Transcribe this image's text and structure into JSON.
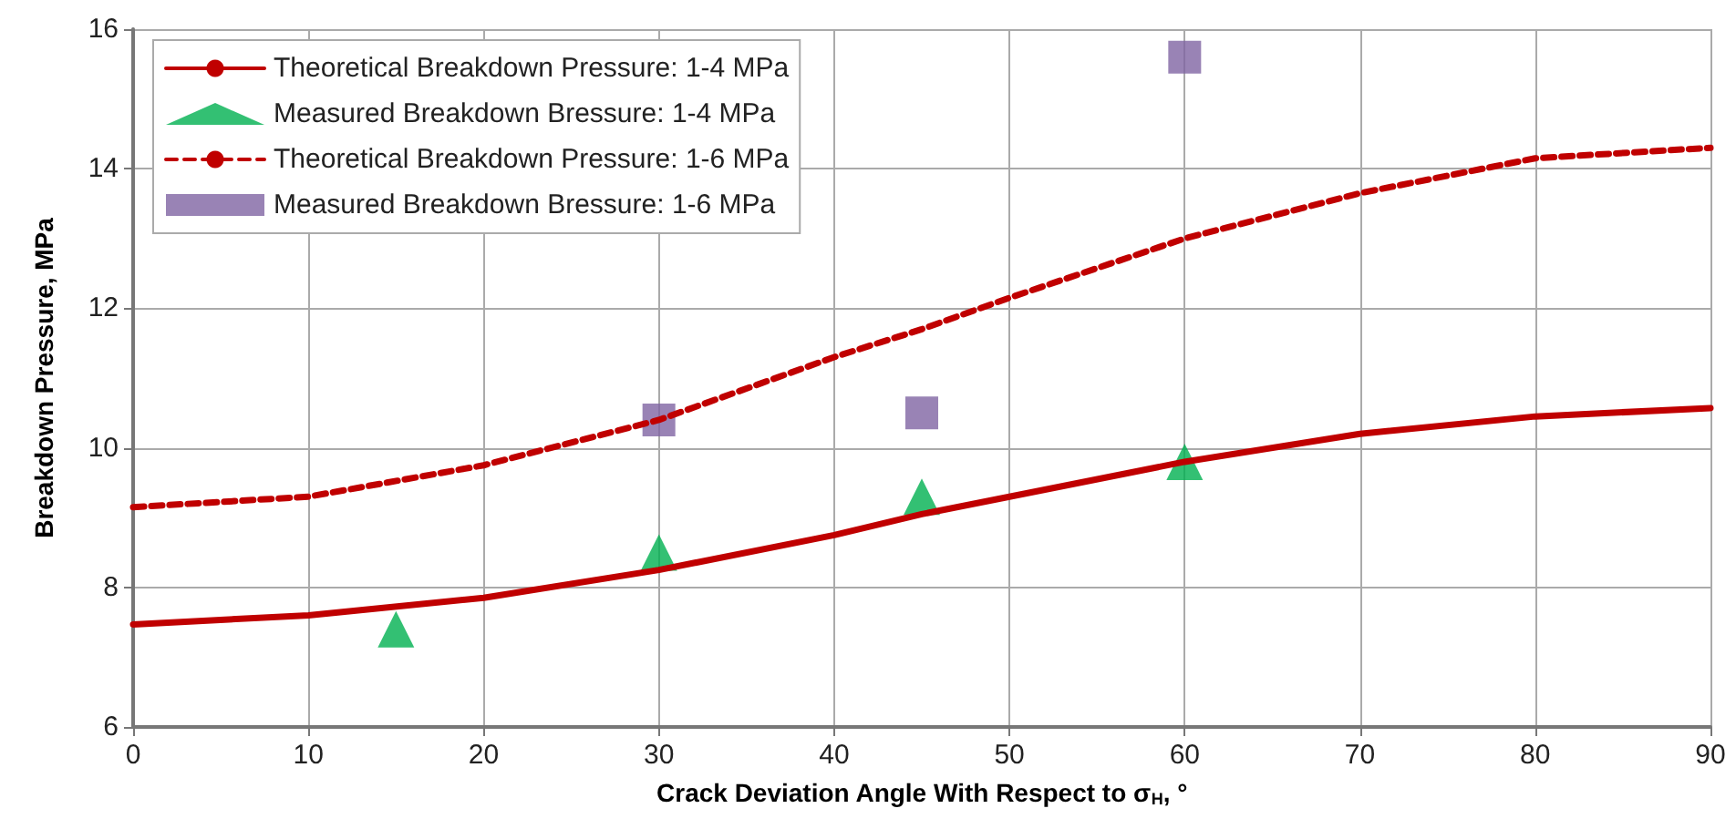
{
  "chart_data": {
    "type": "line",
    "xlabel": "Crack Deviation Angle With Respect to σ$_{H}$, °",
    "ylabel": "Breakdown Pressure, MPa",
    "xlim": [
      0,
      90
    ],
    "xticks": [
      0,
      10,
      20,
      30,
      40,
      50,
      60,
      70,
      80,
      90
    ],
    "ylim": [
      6,
      16
    ],
    "yticks": [
      6,
      8,
      10,
      12,
      14,
      16
    ],
    "grid": true,
    "legend": "top left",
    "series": [
      {
        "name": "Theoretical Breakdown Pressure: 1-4 MPa",
        "color": "#c00000",
        "line_style": "solid",
        "marker": "none",
        "x": [
          0,
          10,
          20,
          30,
          40,
          45,
          50,
          60,
          70,
          80,
          90
        ],
        "values": [
          7.47,
          7.6,
          7.85,
          8.25,
          8.75,
          9.05,
          9.3,
          9.8,
          10.2,
          10.45,
          10.57
        ]
      },
      {
        "name": "Measured Breakdown Bressure: 1-4 MPa",
        "type": "scatter",
        "color": "#00b050",
        "marker": "triangle",
        "x": [
          15,
          30,
          45,
          60
        ],
        "values": [
          7.4,
          8.5,
          9.3,
          9.8
        ]
      },
      {
        "name": "Theoretical Breakdown Pressure: 1-6 MPa",
        "color": "#c00000",
        "line_style": "dashed",
        "marker": "none",
        "x": [
          0,
          10,
          20,
          30,
          40,
          45,
          50,
          60,
          70,
          80,
          90
        ],
        "values": [
          9.15,
          9.3,
          9.75,
          10.4,
          11.3,
          11.7,
          12.15,
          13.0,
          13.65,
          14.15,
          14.3
        ]
      },
      {
        "name": "Measured Breakdown Bressure: 1-6 MPa",
        "type": "scatter",
        "color": "#8064a2",
        "marker": "square",
        "x": [
          30,
          45,
          60
        ],
        "values": [
          10.4,
          10.5,
          15.6
        ]
      }
    ]
  }
}
